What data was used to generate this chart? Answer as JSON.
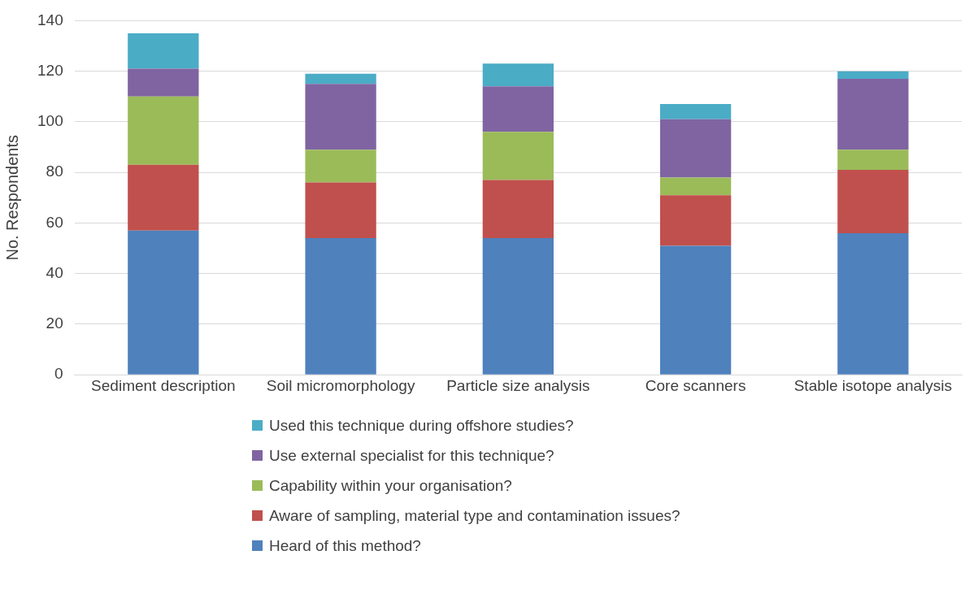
{
  "chart_data": {
    "type": "bar",
    "stacked": true,
    "ylabel": "No. Respondents",
    "categories": [
      "Sediment description",
      "Soil micromorphology",
      "Particle size analysis",
      "Core scanners",
      "Stable isotope analysis"
    ],
    "series": [
      {
        "name": "Heard of this method?",
        "color": "#4f81bd",
        "values": [
          57,
          54,
          54,
          51,
          56
        ]
      },
      {
        "name": "Aware of sampling, material type and contamination issues?",
        "color": "#c0504d",
        "values": [
          26,
          22,
          23,
          20,
          25
        ]
      },
      {
        "name": "Capability within your organisation?",
        "color": "#9bbb59",
        "values": [
          27,
          13,
          19,
          7,
          8
        ]
      },
      {
        "name": "Use external specialist for this technique?",
        "color": "#8064a2",
        "values": [
          11,
          26,
          18,
          23,
          28
        ]
      },
      {
        "name": "Used this technique during offshore studies?",
        "color": "#4bacc6",
        "values": [
          14,
          4,
          9,
          6,
          3
        ]
      }
    ],
    "ylim": [
      0,
      140
    ],
    "yticks": [
      0,
      20,
      40,
      60,
      80,
      100,
      120,
      140
    ],
    "grid": "y",
    "legend": "bottom"
  }
}
